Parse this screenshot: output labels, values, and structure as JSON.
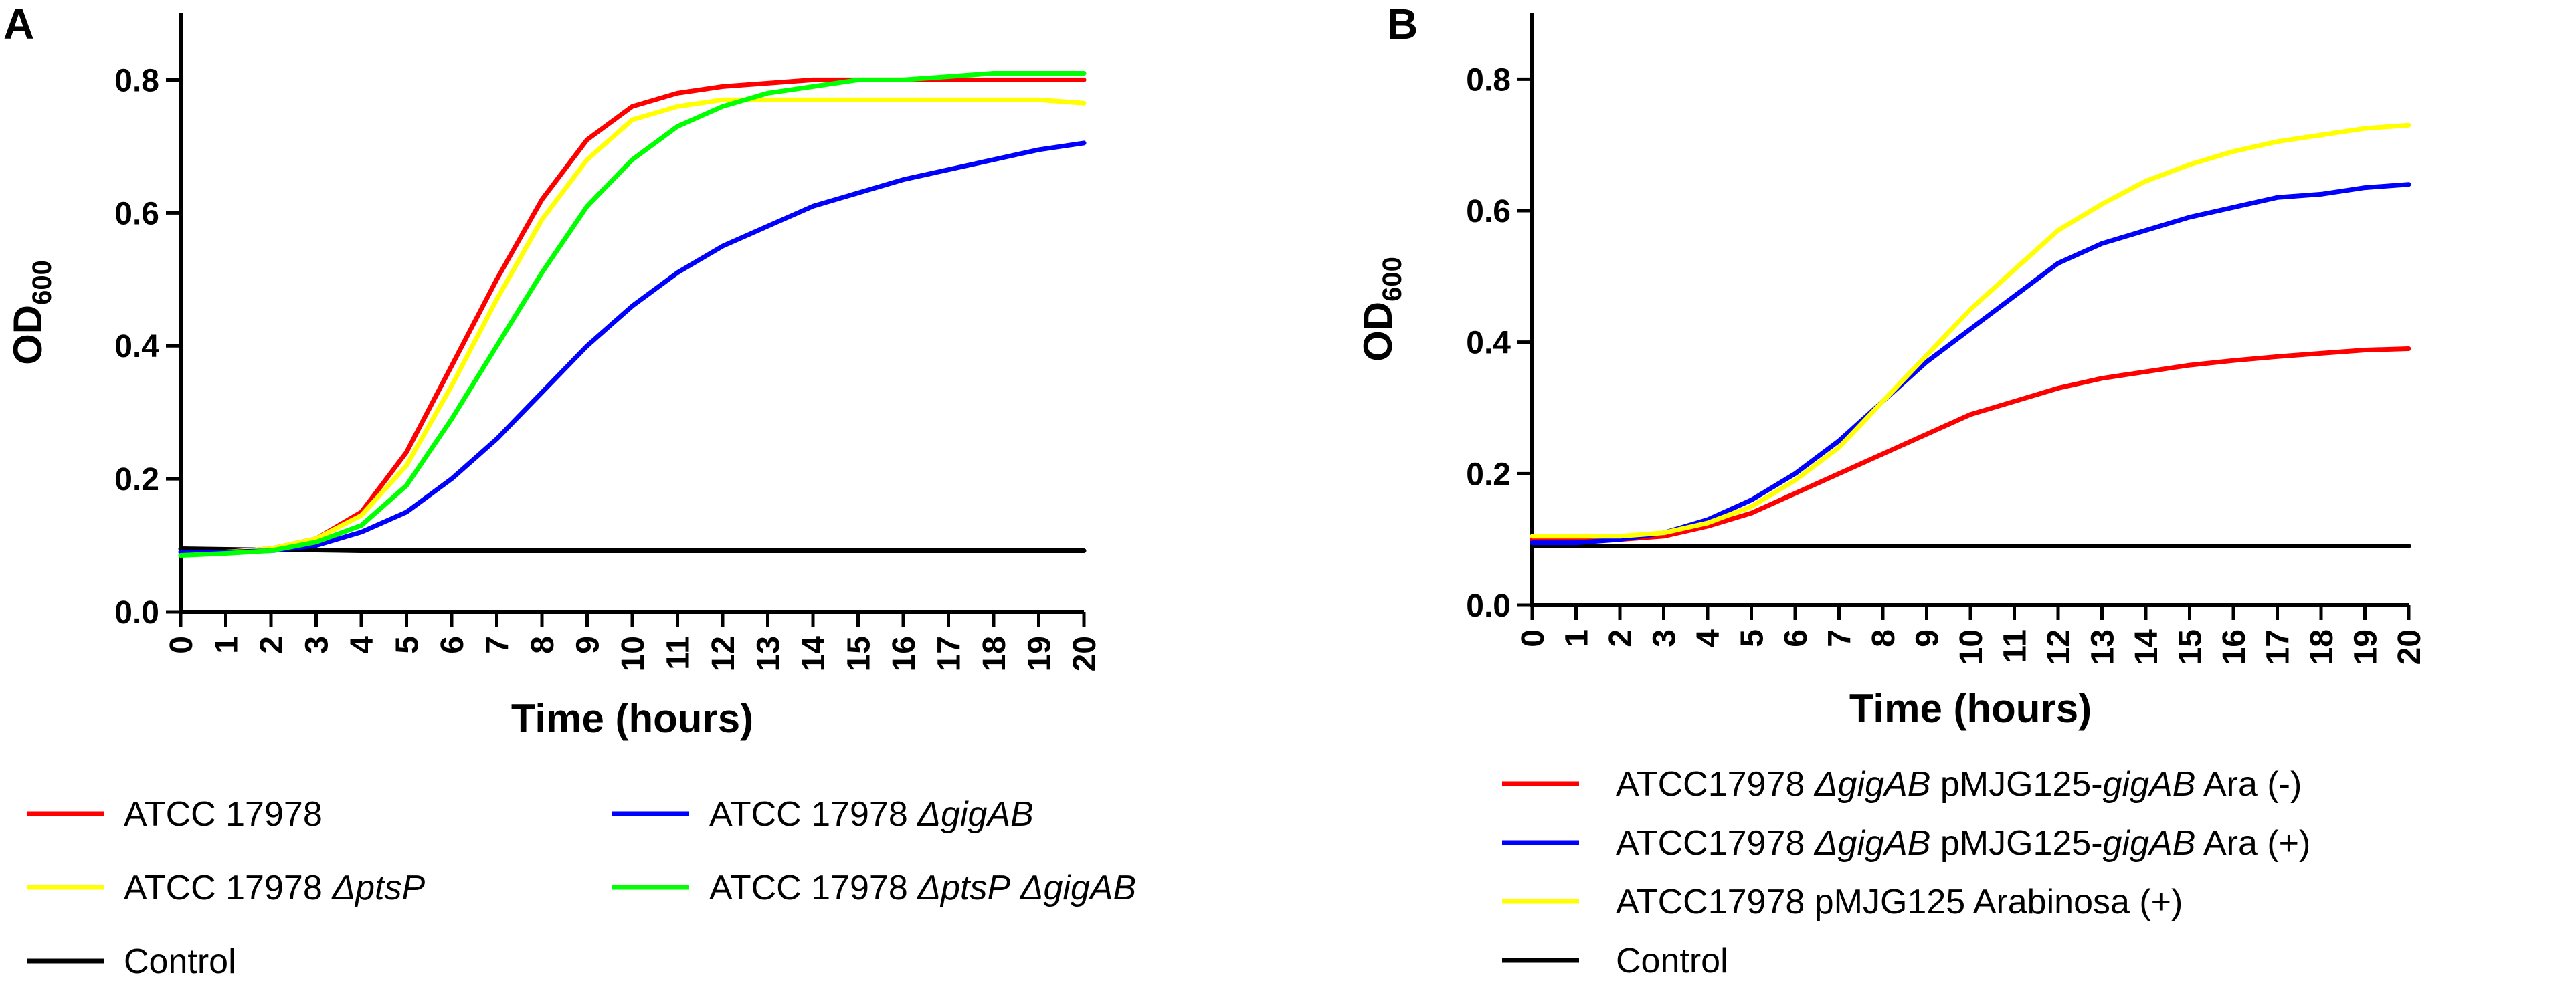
{
  "chart_data": [
    {
      "type": "line",
      "panel": "A",
      "xlabel": "Time (hours)",
      "ylabel": "OD",
      "ylabel_sub": "600",
      "xlim": [
        0,
        20
      ],
      "ylim": [
        0,
        0.9
      ],
      "xticks": [
        "0",
        "1",
        "2",
        "3",
        "4",
        "5",
        "6",
        "7",
        "8",
        "9",
        "10",
        "11",
        "12",
        "13",
        "14",
        "15",
        "16",
        "17",
        "18",
        "19",
        "20"
      ],
      "yticks": [
        "0.0",
        "0.2",
        "0.4",
        "0.6",
        "0.8"
      ],
      "x": [
        0,
        1,
        2,
        3,
        4,
        5,
        6,
        7,
        8,
        9,
        10,
        11,
        12,
        13,
        14,
        15,
        16,
        17,
        18,
        19,
        20
      ],
      "series": [
        {
          "name": "ATCC 17978",
          "parts": [
            {
              "t": "ATCC 17978",
              "i": false
            }
          ],
          "color": "#ff0000",
          "values": [
            0.09,
            0.09,
            0.095,
            0.11,
            0.15,
            0.24,
            0.37,
            0.5,
            0.62,
            0.71,
            0.76,
            0.78,
            0.79,
            0.795,
            0.8,
            0.8,
            0.8,
            0.8,
            0.8,
            0.8,
            0.8
          ]
        },
        {
          "name": "ATCC 17978 ΔptsP",
          "parts": [
            {
              "t": "ATCC 17978 ",
              "i": false
            },
            {
              "t": "ΔptsP",
              "i": true
            }
          ],
          "color": "#ffff00",
          "values": [
            0.09,
            0.09,
            0.095,
            0.11,
            0.145,
            0.22,
            0.34,
            0.47,
            0.59,
            0.68,
            0.74,
            0.76,
            0.77,
            0.77,
            0.77,
            0.77,
            0.77,
            0.77,
            0.77,
            0.77,
            0.765
          ]
        },
        {
          "name": "Control",
          "parts": [
            {
              "t": "Control",
              "i": false
            }
          ],
          "color": "#000000",
          "values": [
            0.095,
            0.094,
            0.093,
            0.093,
            0.092,
            0.092,
            0.092,
            0.092,
            0.092,
            0.092,
            0.092,
            0.092,
            0.092,
            0.092,
            0.092,
            0.092,
            0.092,
            0.092,
            0.092,
            0.092,
            0.092
          ]
        },
        {
          "name": "ATCC 17978 ΔgigAB",
          "parts": [
            {
              "t": "ATCC 17978 ",
              "i": false
            },
            {
              "t": "ΔgigAB",
              "i": true
            }
          ],
          "color": "#0000ff",
          "values": [
            0.09,
            0.09,
            0.092,
            0.1,
            0.12,
            0.15,
            0.2,
            0.26,
            0.33,
            0.4,
            0.46,
            0.51,
            0.55,
            0.58,
            0.61,
            0.63,
            0.65,
            0.665,
            0.68,
            0.695,
            0.705
          ]
        },
        {
          "name": "ATCC 17978 ΔptsP ΔgigAB",
          "parts": [
            {
              "t": "ATCC 17978 ",
              "i": false
            },
            {
              "t": "ΔptsP",
              "i": true
            },
            {
              "t": " ",
              "i": false
            },
            {
              "t": "ΔgigAB",
              "i": true
            }
          ],
          "color": "#00ff00",
          "values": [
            0.085,
            0.088,
            0.092,
            0.105,
            0.13,
            0.19,
            0.29,
            0.4,
            0.51,
            0.61,
            0.68,
            0.73,
            0.76,
            0.78,
            0.79,
            0.8,
            0.8,
            0.805,
            0.81,
            0.81,
            0.81
          ]
        }
      ],
      "legend_left": [
        "ATCC 17978",
        "ATCC 17978 ΔptsP",
        "Control"
      ],
      "legend_right": [
        "ATCC 17978 ΔgigAB",
        "ATCC 17978 ΔptsP ΔgigAB"
      ]
    },
    {
      "type": "line",
      "panel": "B",
      "xlabel": "Time (hours)",
      "ylabel": "OD",
      "ylabel_sub": "600",
      "xlim": [
        0,
        20
      ],
      "ylim": [
        0,
        0.9
      ],
      "xticks": [
        "0",
        "1",
        "2",
        "3",
        "4",
        "5",
        "6",
        "7",
        "8",
        "9",
        "10",
        "11",
        "12",
        "13",
        "14",
        "15",
        "16",
        "17",
        "18",
        "19",
        "20"
      ],
      "yticks": [
        "0.0",
        "0.2",
        "0.4",
        "0.6",
        "0.8"
      ],
      "x": [
        0,
        1,
        2,
        3,
        4,
        5,
        6,
        7,
        8,
        9,
        10,
        11,
        12,
        13,
        14,
        15,
        16,
        17,
        18,
        19,
        20
      ],
      "series": [
        {
          "name": "ATCC17978 ΔgigAB pMJG125-gigAB Ara (-)",
          "parts": [
            {
              "t": "ATCC17978 ",
              "i": false
            },
            {
              "t": "ΔgigAB",
              "i": true
            },
            {
              "t": " pMJG125-",
              "i": false
            },
            {
              "t": "gigAB",
              "i": true
            },
            {
              "t": " Ara (-)",
              "i": false
            }
          ],
          "color": "#ff0000",
          "values": [
            0.1,
            0.1,
            0.1,
            0.105,
            0.12,
            0.14,
            0.17,
            0.2,
            0.23,
            0.26,
            0.29,
            0.31,
            0.33,
            0.345,
            0.355,
            0.365,
            0.372,
            0.378,
            0.383,
            0.388,
            0.39
          ]
        },
        {
          "name": "ATCC17978 ΔgigAB pMJG125-gigAB Ara (+)",
          "parts": [
            {
              "t": "ATCC17978 ",
              "i": false
            },
            {
              "t": "ΔgigAB",
              "i": true
            },
            {
              "t": " pMJG125-",
              "i": false
            },
            {
              "t": "gigAB",
              "i": true
            },
            {
              "t": " Ara (+)",
              "i": false
            }
          ],
          "color": "#0000ff",
          "values": [
            0.095,
            0.095,
            0.1,
            0.11,
            0.13,
            0.16,
            0.2,
            0.25,
            0.31,
            0.37,
            0.42,
            0.47,
            0.52,
            0.55,
            0.57,
            0.59,
            0.605,
            0.62,
            0.625,
            0.635,
            0.64
          ]
        },
        {
          "name": "ATCC17978  pMJG125 Arabinosa (+)",
          "parts": [
            {
              "t": "ATCC17978  pMJG125 Arabinosa (+)",
              "i": false
            }
          ],
          "color": "#ffff00",
          "values": [
            0.105,
            0.105,
            0.105,
            0.11,
            0.125,
            0.15,
            0.19,
            0.24,
            0.31,
            0.38,
            0.45,
            0.51,
            0.57,
            0.61,
            0.645,
            0.67,
            0.69,
            0.705,
            0.715,
            0.725,
            0.73
          ]
        },
        {
          "name": "Control",
          "parts": [
            {
              "t": "Control",
              "i": false
            }
          ],
          "color": "#000000",
          "values": [
            0.09,
            0.09,
            0.09,
            0.09,
            0.09,
            0.09,
            0.09,
            0.09,
            0.09,
            0.09,
            0.09,
            0.09,
            0.09,
            0.09,
            0.09,
            0.09,
            0.09,
            0.09,
            0.09,
            0.09,
            0.09
          ]
        }
      ],
      "legend_left": [
        "ATCC17978 ΔgigAB pMJG125-gigAB Ara (-)",
        "ATCC17978 ΔgigAB pMJG125-gigAB Ara (+)",
        "ATCC17978  pMJG125 Arabinosa (+)",
        "Control"
      ],
      "legend_right": []
    }
  ]
}
